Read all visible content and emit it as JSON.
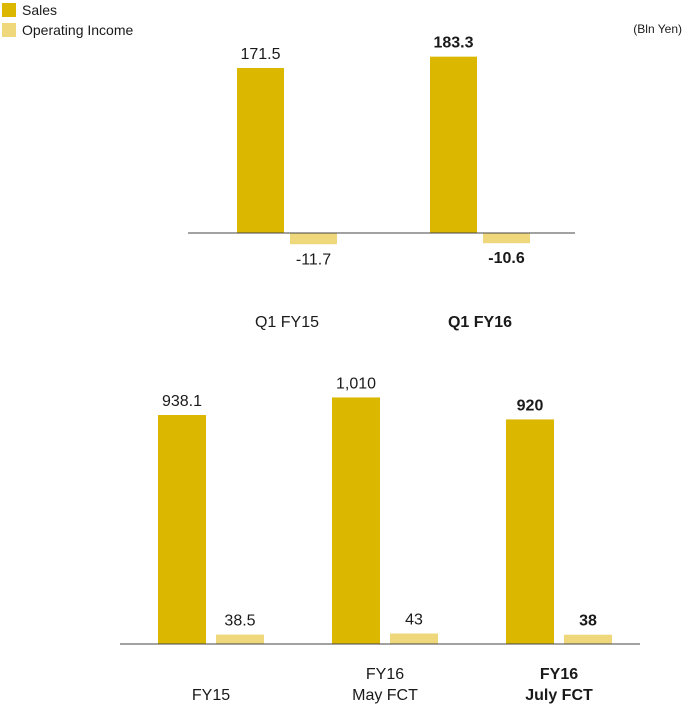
{
  "legend": {
    "sales_label": "Sales",
    "oi_label": "Operating Income"
  },
  "unit_note": "(Bln Yen)",
  "colors": {
    "sales": "#dbb700",
    "operating_income": "#eed87b",
    "axis": "#444444"
  },
  "chart_data": [
    {
      "type": "bar",
      "categories": [
        [
          "Q1 FY15"
        ],
        [
          "Q1 FY16"
        ]
      ],
      "emphasis": [
        false,
        true
      ],
      "series": [
        {
          "name": "Sales",
          "values": [
            171.5,
            183.3
          ],
          "labels": [
            "171.5",
            "183.3"
          ]
        },
        {
          "name": "Operating Income",
          "values": [
            -11.7,
            -10.6
          ],
          "labels": [
            "-11.7",
            "-10.6"
          ]
        }
      ]
    },
    {
      "type": "bar",
      "categories": [
        [
          "FY15"
        ],
        [
          "FY16",
          "May FCT"
        ],
        [
          "FY16",
          "July FCT"
        ]
      ],
      "emphasis": [
        false,
        false,
        true
      ],
      "series": [
        {
          "name": "Sales",
          "values": [
            938.1,
            1010,
            920
          ],
          "labels": [
            "938.1",
            "1,010",
            "920"
          ]
        },
        {
          "name": "Operating Income",
          "values": [
            38.5,
            43,
            38
          ],
          "labels": [
            "38.5",
            "43",
            "38"
          ]
        }
      ]
    }
  ]
}
